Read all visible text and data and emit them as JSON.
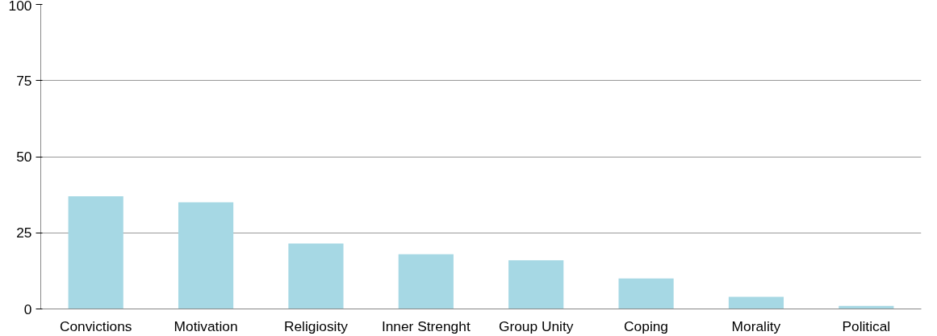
{
  "chart_data": {
    "type": "bar",
    "categories": [
      "Convictions",
      "Motivation",
      "Religiosity",
      "Inner Strenght",
      "Group Unity",
      "Coping",
      "Morality",
      "Political"
    ],
    "values": [
      37,
      35,
      21.5,
      18,
      16,
      10,
      4,
      1
    ],
    "color": "#a6d8e4",
    "ylim": [
      0,
      100
    ],
    "yticks": [
      0,
      25,
      50,
      75,
      100
    ],
    "grid": "y"
  }
}
